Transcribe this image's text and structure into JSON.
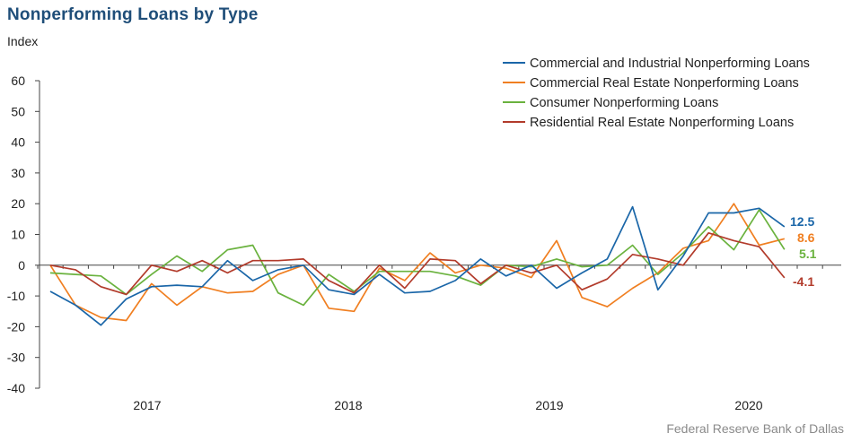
{
  "title": "Nonperforming Loans by Type",
  "y_unit": "Index",
  "source": "Federal Reserve Bank of Dallas",
  "chart_data": {
    "type": "line",
    "ylim": [
      -40,
      60
    ],
    "yticks": [
      "60",
      "50",
      "40",
      "30",
      "20",
      "10",
      "0",
      "-10",
      "-20",
      "-30",
      "-40"
    ],
    "xtick_labels": [
      "2017",
      "2018",
      "2019",
      "2020"
    ],
    "grid": false,
    "legend_position": "top-right",
    "series": [
      {
        "name": "Commercial and Industrial Nonperforming Loans",
        "color": "#1a66a8",
        "end_label": "12.5",
        "values": [
          -8.5,
          -13,
          -19.5,
          -11,
          -7,
          -6.5,
          -7,
          1.5,
          -5,
          -1.5,
          0,
          -8,
          -9.5,
          -3,
          -9,
          -8.5,
          -5,
          2,
          -3.5,
          0,
          -7.5,
          -2.5,
          2,
          19,
          -8,
          3,
          17,
          17,
          18.5,
          12.5
        ]
      },
      {
        "name": "Commercial Real Estate Nonperforming Loans",
        "color": "#f07f21",
        "end_label": "8.6",
        "values": [
          0,
          -13,
          -17,
          -18,
          -6,
          -13,
          -7,
          -9,
          -8.5,
          -3,
          0,
          -14,
          -15,
          -1,
          -5,
          4,
          -2.5,
          0,
          -1,
          -4,
          8,
          -10.5,
          -13.5,
          -7.5,
          -2.5,
          5.5,
          8,
          20,
          6.5,
          8.6
        ]
      },
      {
        "name": "Consumer Nonperforming Loans",
        "color": "#6ab23e",
        "end_label": "5.1",
        "values": [
          -2.5,
          -3,
          -3.5,
          -9.5,
          -3,
          3,
          -2,
          5,
          6.5,
          -9,
          -13,
          -3,
          -8.5,
          -2,
          -2,
          -2,
          -3.5,
          -6.5,
          0,
          -0.5,
          2,
          -0.5,
          0,
          6.5,
          -3,
          4,
          12.5,
          5,
          18,
          5.1
        ]
      },
      {
        "name": "Residential Real Estate Nonperforming Loans",
        "color": "#b23b2b",
        "end_label": "-4.1",
        "values": [
          0,
          -1.5,
          -7,
          -9.5,
          0,
          -2,
          1.5,
          -2.5,
          1.5,
          1.5,
          2,
          -5,
          -9,
          0,
          -7.5,
          2,
          1.5,
          -6,
          0,
          -2.5,
          0,
          -8,
          -4.5,
          3.5,
          2,
          0,
          10.5,
          8,
          6,
          -4.1
        ]
      }
    ]
  }
}
